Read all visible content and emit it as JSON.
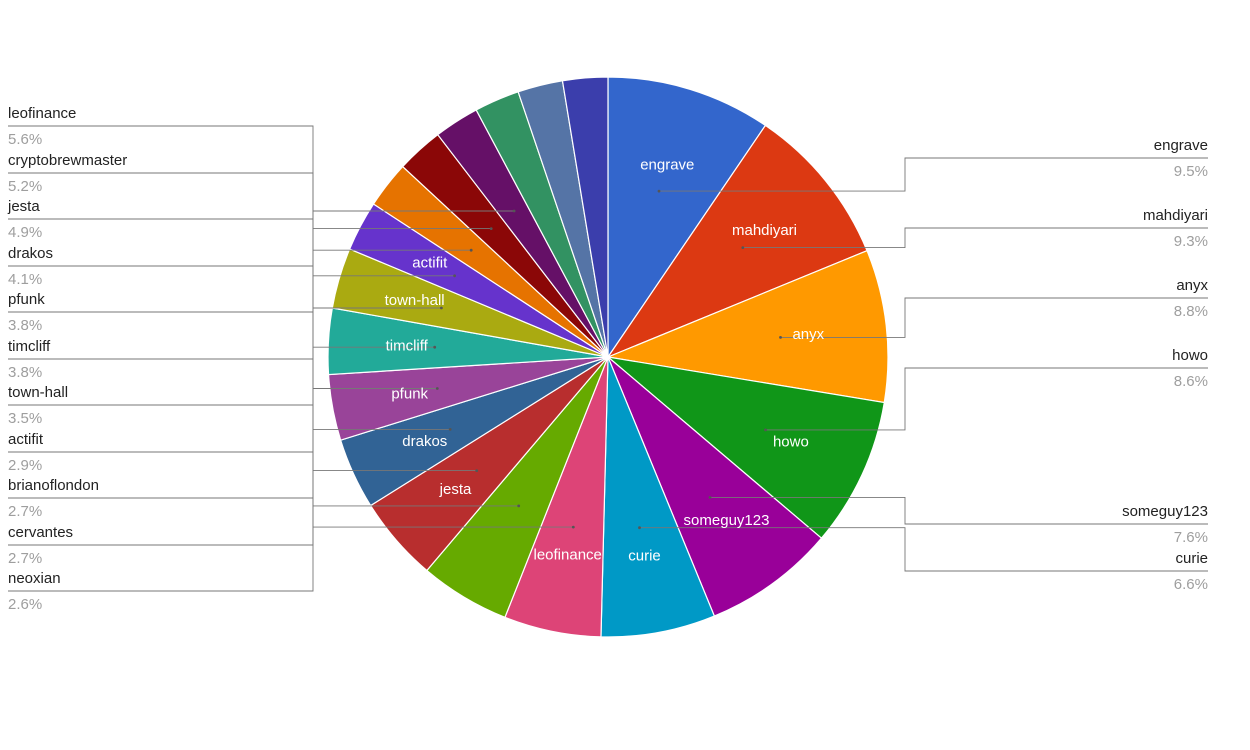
{
  "chart_data": {
    "type": "pie",
    "title": "",
    "start_angle_deg": 0,
    "direction": "clockwise",
    "legend": "callout-labels",
    "slices": [
      {
        "label": "engrave",
        "value": 9.5,
        "percent_label": "9.5%",
        "color": "#3366cc",
        "inside_label": true
      },
      {
        "label": "mahdiyari",
        "value": 9.3,
        "percent_label": "9.3%",
        "color": "#dc3912",
        "inside_label": true
      },
      {
        "label": "anyx",
        "value": 8.8,
        "percent_label": "8.8%",
        "color": "#ff9900",
        "inside_label": true
      },
      {
        "label": "howo",
        "value": 8.6,
        "percent_label": "8.6%",
        "color": "#109618",
        "inside_label": true
      },
      {
        "label": "someguy123",
        "value": 7.6,
        "percent_label": "7.6%",
        "color": "#990099",
        "inside_label": true
      },
      {
        "label": "curie",
        "value": 6.6,
        "percent_label": "6.6%",
        "color": "#0099c6",
        "inside_label": true
      },
      {
        "label": "leofinance",
        "value": 5.6,
        "percent_label": "5.6%",
        "color": "#dd4477",
        "inside_label": true
      },
      {
        "label": "cryptobrewmaster",
        "value": 5.2,
        "percent_label": "5.2%",
        "color": "#66aa00",
        "inside_label": false
      },
      {
        "label": "jesta",
        "value": 4.9,
        "percent_label": "4.9%",
        "color": "#b82e2e",
        "inside_label": true
      },
      {
        "label": "drakos",
        "value": 4.1,
        "percent_label": "4.1%",
        "color": "#316395",
        "inside_label": true
      },
      {
        "label": "pfunk",
        "value": 3.8,
        "percent_label": "3.8%",
        "color": "#994499",
        "inside_label": true
      },
      {
        "label": "timcliff",
        "value": 3.8,
        "percent_label": "3.8%",
        "color": "#22aa99",
        "inside_label": true
      },
      {
        "label": "town-hall",
        "value": 3.5,
        "percent_label": "3.5%",
        "color": "#aaaa11",
        "inside_label": true
      },
      {
        "label": "actifit",
        "value": 2.9,
        "percent_label": "2.9%",
        "color": "#6633cc",
        "inside_label": true
      },
      {
        "label": "brianoflondon",
        "value": 2.7,
        "percent_label": "2.7%",
        "color": "#e67300",
        "inside_label": false
      },
      {
        "label": "cervantes",
        "value": 2.7,
        "percent_label": "2.7%",
        "color": "#8b0707",
        "inside_label": false
      },
      {
        "label": "neoxian",
        "value": 2.6,
        "percent_label": "2.6%",
        "color": "#651067",
        "inside_label": false
      },
      {
        "label": "",
        "value": 2.6,
        "percent_label": "",
        "color": "#329262",
        "inside_label": false
      },
      {
        "label": "",
        "value": 2.6,
        "percent_label": "",
        "color": "#5574a6",
        "inside_label": false
      },
      {
        "label": "",
        "value": 2.6,
        "percent_label": "",
        "color": "#3b3eac",
        "inside_label": false
      }
    ]
  }
}
